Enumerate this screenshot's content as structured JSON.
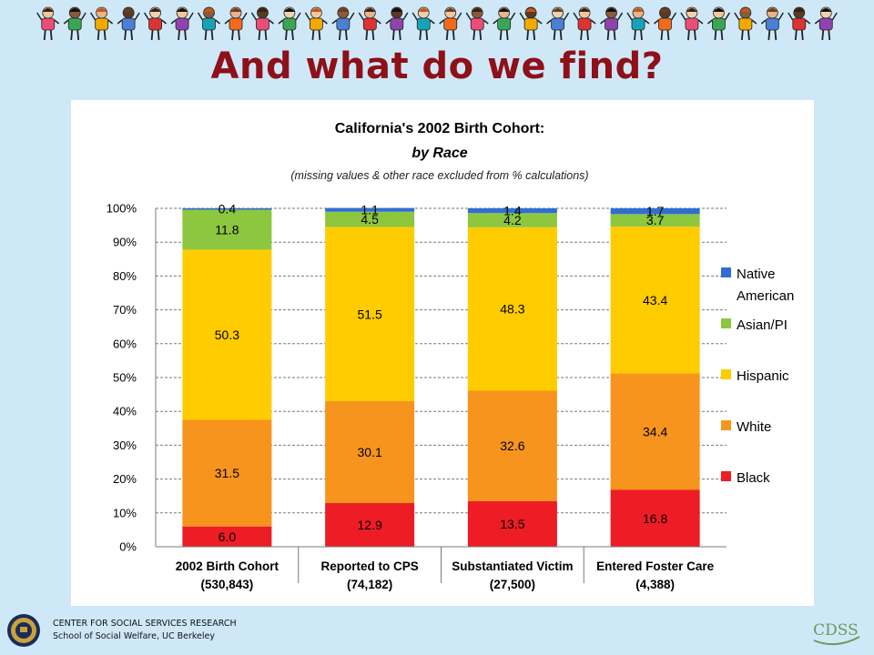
{
  "slide": {
    "title": "And what do we find?",
    "footer_line1": "CENTER FOR SOCIAL SERVICES RESEARCH",
    "footer_line2": "School of Social Welfare, UC Berkeley",
    "logo_text": "CDSS"
  },
  "chart_data": {
    "type": "bar",
    "stacked": true,
    "title": "California's 2002 Birth Cohort:",
    "subtitle": "by Race",
    "note": "(missing values & other race excluded from % calculations)",
    "categories": [
      {
        "line1": "2002 Birth Cohort",
        "line2": "(530,843)"
      },
      {
        "line1": "Reported to CPS",
        "line2": "(74,182)"
      },
      {
        "line1": "Substantiated Victim",
        "line2": "(27,500)"
      },
      {
        "line1": "Entered Foster Care",
        "line2": "(4,388)"
      }
    ],
    "series": [
      {
        "name": "Black",
        "color": "#ee1c25",
        "values": [
          6.0,
          12.9,
          13.5,
          16.8
        ],
        "labels": [
          "6.0",
          "12.9",
          "13.5",
          "16.8"
        ]
      },
      {
        "name": "White",
        "color": "#f7941d",
        "values": [
          31.5,
          30.1,
          32.6,
          34.4
        ],
        "labels": [
          "31.5",
          "30.1",
          "32.6",
          "34.4"
        ]
      },
      {
        "name": "Hispanic",
        "color": "#ffcc00",
        "values": [
          50.3,
          51.5,
          48.3,
          43.4
        ],
        "labels": [
          "50.3",
          "51.5",
          "48.3",
          "43.4"
        ]
      },
      {
        "name": "Asian/PI",
        "color": "#8dc63f",
        "values": [
          11.8,
          4.5,
          4.2,
          3.7
        ],
        "labels": [
          "11.8",
          "4.5",
          "4.2",
          "3.7"
        ]
      },
      {
        "name": "Native American",
        "color": "#2f6fd4",
        "values": [
          0.4,
          1.1,
          1.4,
          1.7
        ],
        "labels": [
          "0.4",
          "1.1",
          "1.4",
          "1.7"
        ]
      }
    ],
    "yticks": [
      "0%",
      "10%",
      "20%",
      "30%",
      "40%",
      "50%",
      "60%",
      "70%",
      "80%",
      "90%",
      "100%"
    ],
    "ylim": [
      0,
      100
    ],
    "grid": "horizontal dashed",
    "legend": {
      "position": "right",
      "entries": [
        {
          "line1": "Native",
          "line2": "American",
          "color": "#2f6fd4"
        },
        {
          "line1": "Asian/PI",
          "line2": "",
          "color": "#8dc63f"
        },
        {
          "line1": "Hispanic",
          "line2": "",
          "color": "#ffcc00"
        },
        {
          "line1": "White",
          "line2": "",
          "color": "#f7941d"
        },
        {
          "line1": "Black",
          "line2": "",
          "color": "#ee1c25"
        }
      ]
    }
  }
}
